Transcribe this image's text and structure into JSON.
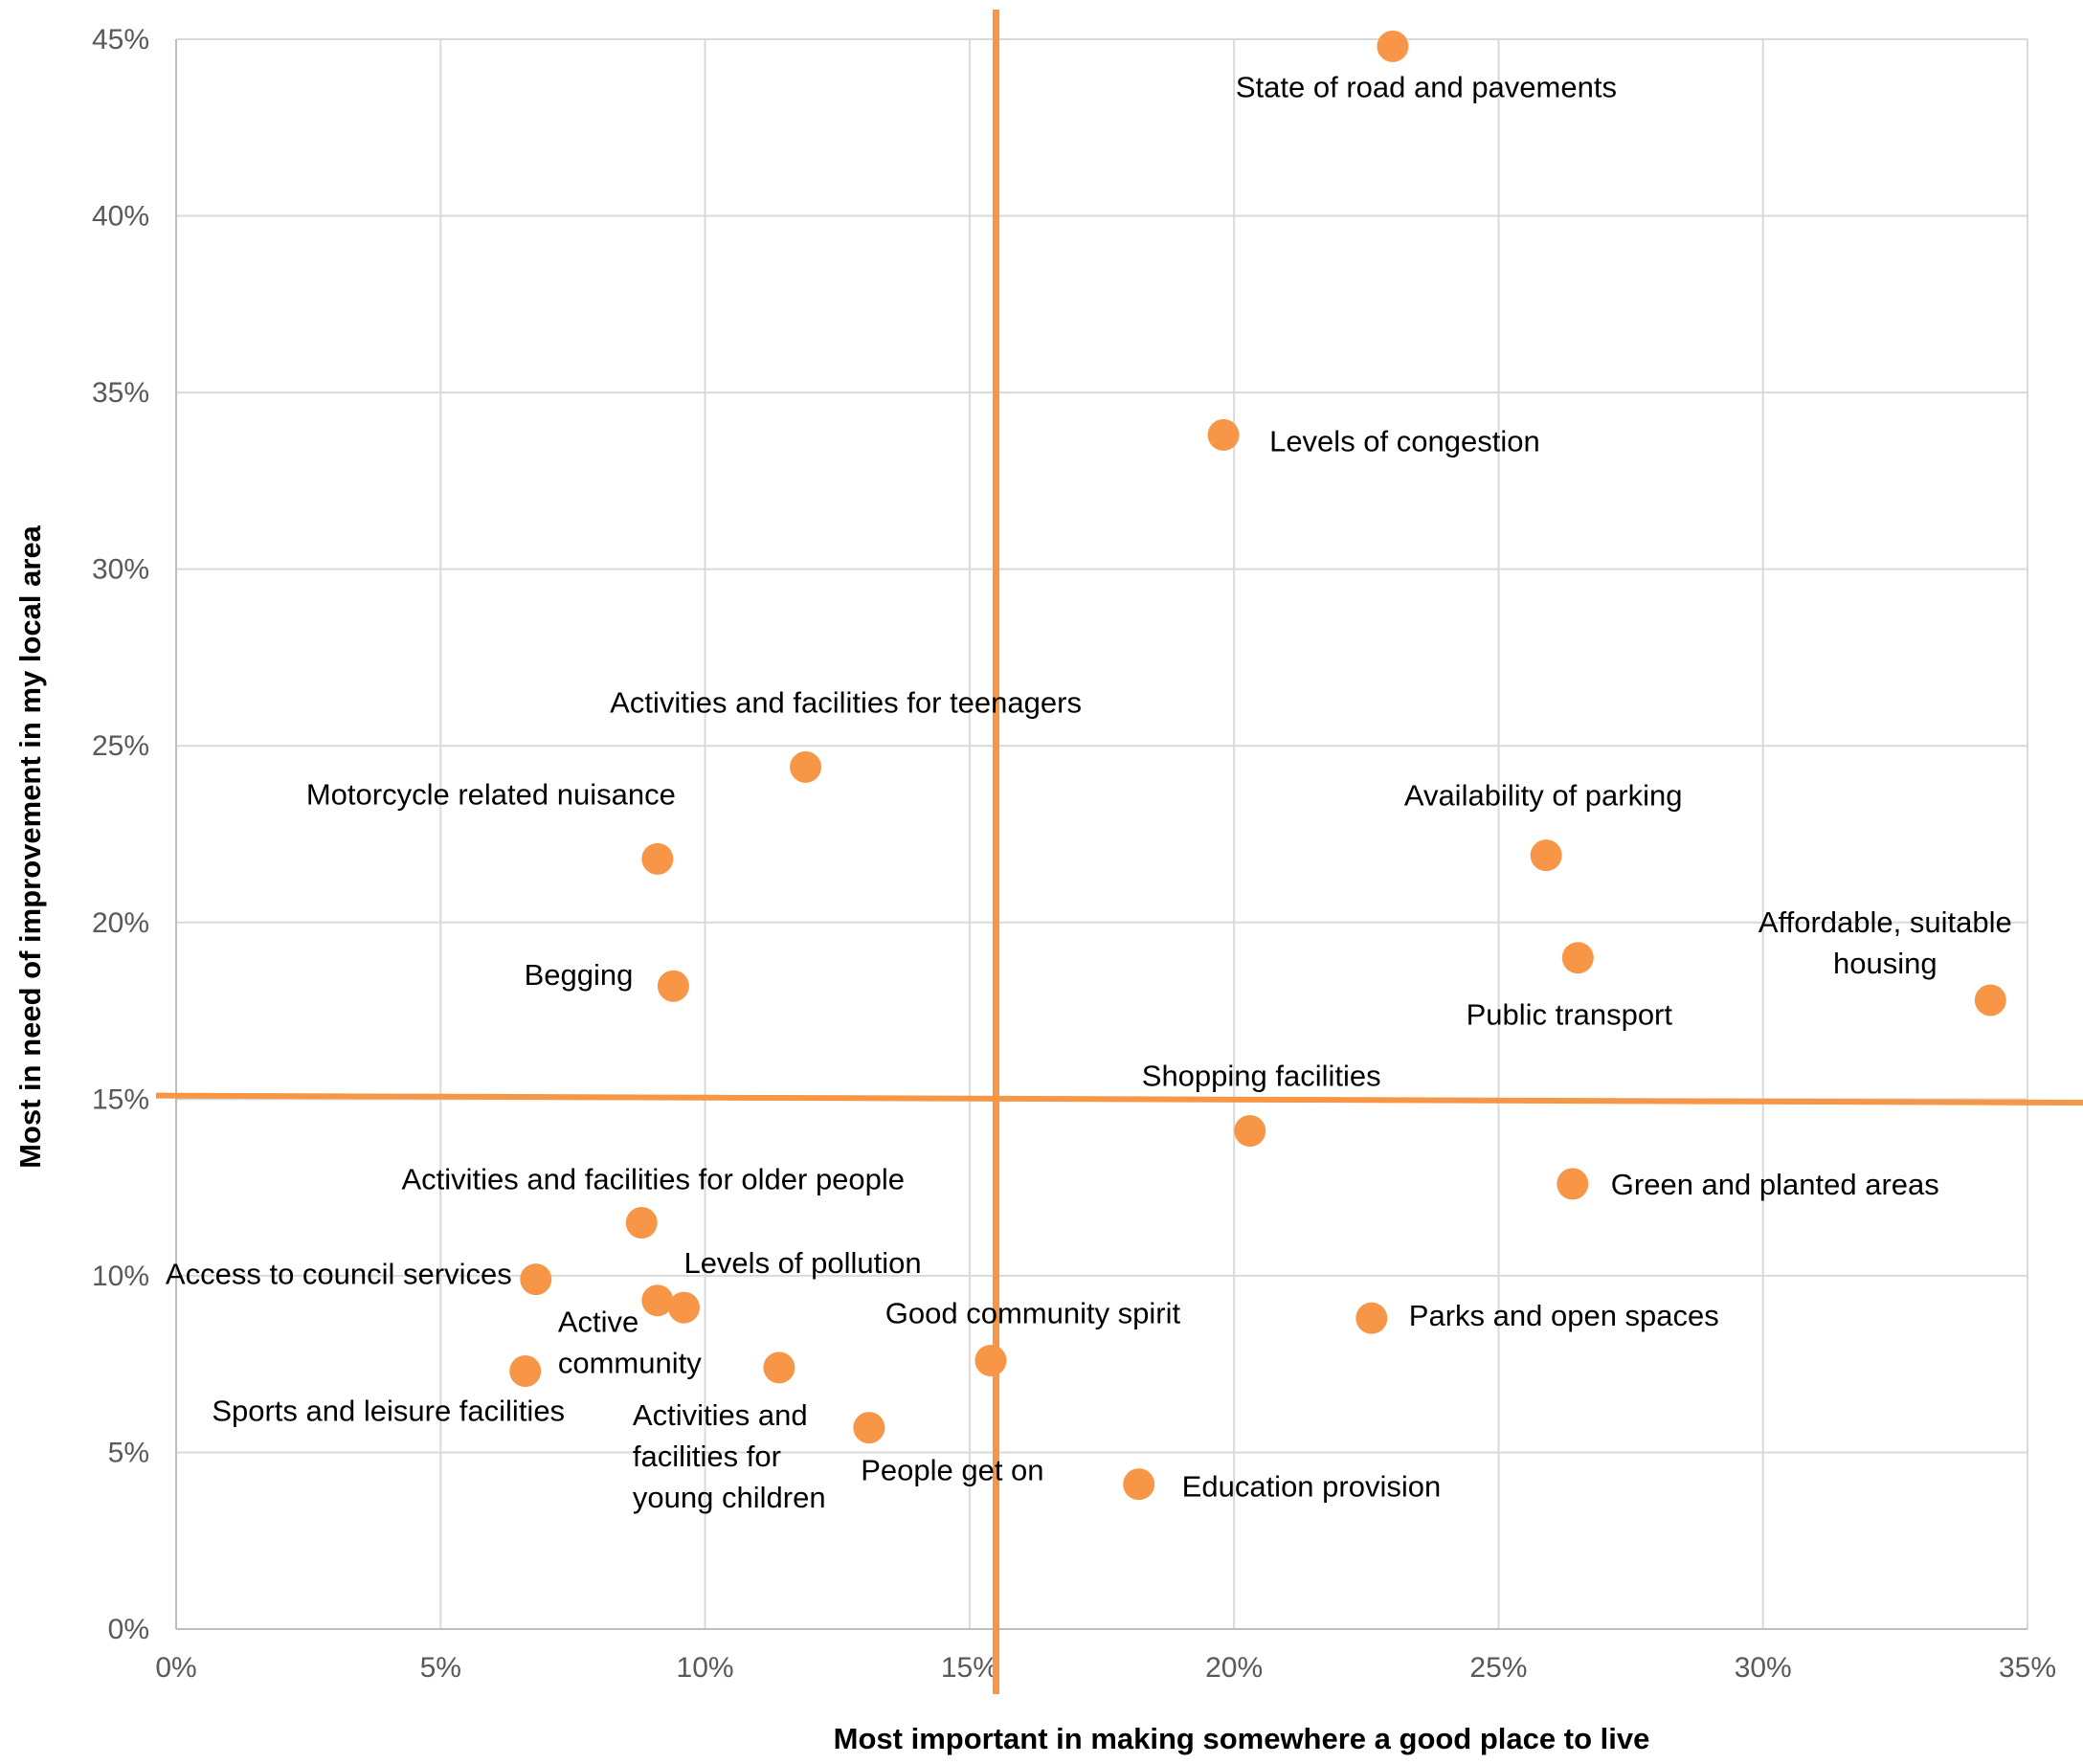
{
  "chart_data": {
    "type": "scatter",
    "title": "",
    "xlabel": "Most important in making somewhere a good place to live",
    "ylabel": "Most in need of improvement in my local area",
    "xlim": [
      0,
      35
    ],
    "ylim": [
      0,
      45
    ],
    "x_ticks": [
      0,
      5,
      10,
      15,
      20,
      25,
      30,
      35
    ],
    "y_ticks": [
      0,
      5,
      10,
      15,
      20,
      25,
      30,
      35,
      40,
      45
    ],
    "x_tick_labels": [
      "0%",
      "5%",
      "10%",
      "15%",
      "20%",
      "25%",
      "30%",
      "35%"
    ],
    "y_tick_labels": [
      "0%",
      "5%",
      "10%",
      "15%",
      "20%",
      "25%",
      "30%",
      "35%",
      "40%",
      "45%"
    ],
    "grid": true,
    "legend": "none",
    "colors": {
      "marker": "#F79646",
      "quadrant_line": "#F79646",
      "grid": "#D9D9D9"
    },
    "quadrant_lines": {
      "vertical_x": 15.5,
      "horizontal_y_left": 15.1,
      "horizontal_y_right": 14.9
    },
    "points": [
      {
        "label": "State of road and pavements",
        "x": 23.0,
        "y": 44.8
      },
      {
        "label": "Levels of congestion",
        "x": 19.8,
        "y": 33.8
      },
      {
        "label": "Activities and facilities for teenagers",
        "x": 11.9,
        "y": 24.4
      },
      {
        "label": "Motorcycle related nuisance",
        "x": 9.1,
        "y": 21.8
      },
      {
        "label": "Begging",
        "x": 9.4,
        "y": 18.2
      },
      {
        "label": "Availability of parking",
        "x": 25.9,
        "y": 21.9
      },
      {
        "label": "Public transport",
        "x": 26.5,
        "y": 19.0
      },
      {
        "label": "Affordable, suitable housing",
        "x": 34.3,
        "y": 17.8
      },
      {
        "label": "Shopping facilities",
        "x": 20.3,
        "y": 14.1
      },
      {
        "label": "Green and planted areas",
        "x": 26.4,
        "y": 12.6
      },
      {
        "label": "Activities and facilities for older people",
        "x": 8.8,
        "y": 11.5
      },
      {
        "label": "Access to council services",
        "x": 6.8,
        "y": 9.9
      },
      {
        "label": "Active community",
        "x": 9.1,
        "y": 9.3
      },
      {
        "label": "Levels of pollution",
        "x": 9.6,
        "y": 9.1
      },
      {
        "label": "Parks and open spaces",
        "x": 22.6,
        "y": 8.8
      },
      {
        "label": "Good community spirit",
        "x": 15.4,
        "y": 7.6
      },
      {
        "label": "Activities and facilities for young children",
        "x": 11.4,
        "y": 7.4
      },
      {
        "label": "Sports and leisure facilities",
        "x": 6.6,
        "y": 7.3
      },
      {
        "label": "People get on",
        "x": 13.1,
        "y": 5.7
      },
      {
        "label": "Education provision",
        "x": 18.2,
        "y": 4.1
      }
    ]
  }
}
